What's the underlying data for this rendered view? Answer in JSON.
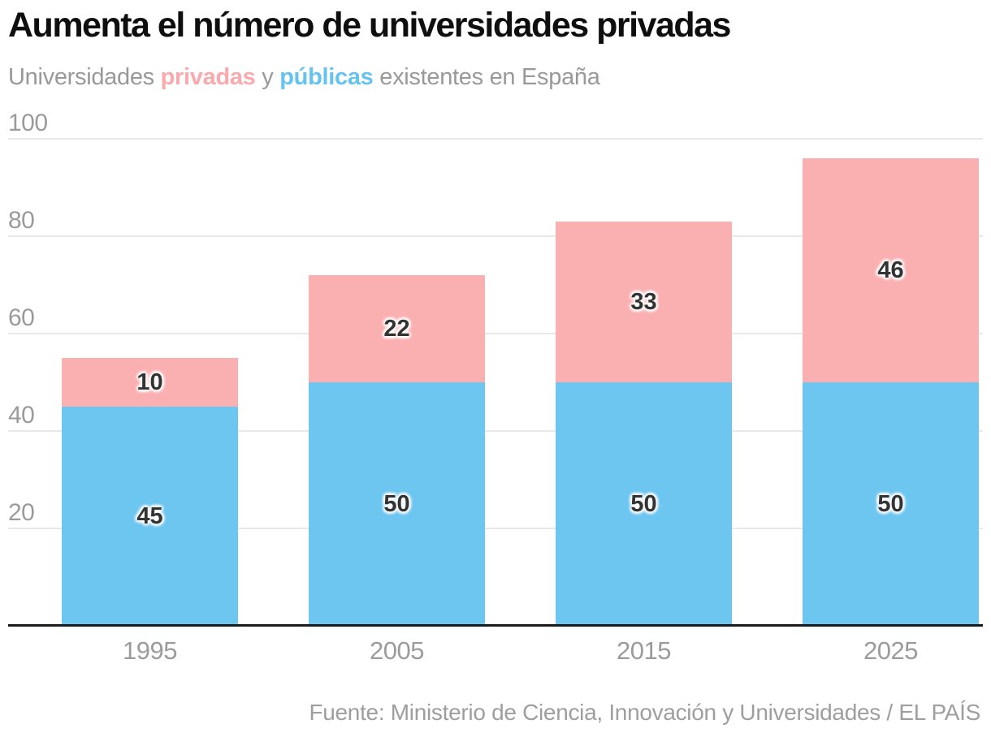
{
  "header": {
    "title": "Aumenta el número de universidades privadas",
    "subtitle": {
      "prefix": "Universidades",
      "privadas": "privadas",
      "conjunction": "y",
      "publicas": "públicas",
      "suffix": "existentes en España"
    }
  },
  "source": "Fuente: Ministerio de Ciencia, Innovación y Universidades / EL PAÍS",
  "colors": {
    "privadas": "#FAAFB1",
    "publicas": "#6CC6F0",
    "value_label": "#333333",
    "axis_text": "#9B9B9B",
    "gridline": "#E8E8E8",
    "baseline": "#1B1B1B",
    "title_text": "#0F0F0F",
    "subtitle_text": "#999999"
  },
  "chart_data": {
    "type": "bar",
    "stacked": true,
    "categories": [
      "1995",
      "2005",
      "2015",
      "2025"
    ],
    "series": [
      {
        "name": "públicas",
        "color_key": "publicas",
        "values": [
          45,
          50,
          50,
          50
        ]
      },
      {
        "name": "privadas",
        "color_key": "privadas",
        "values": [
          10,
          22,
          33,
          46
        ]
      }
    ],
    "totals": [
      55,
      72,
      83,
      96
    ],
    "title": "Aumenta el número de universidades privadas",
    "xlabel": "",
    "ylabel": "",
    "ylim": [
      0,
      100
    ],
    "yticks": [
      100,
      80,
      60,
      40,
      20
    ],
    "grid": true,
    "legend_position": "in-subtitle"
  }
}
